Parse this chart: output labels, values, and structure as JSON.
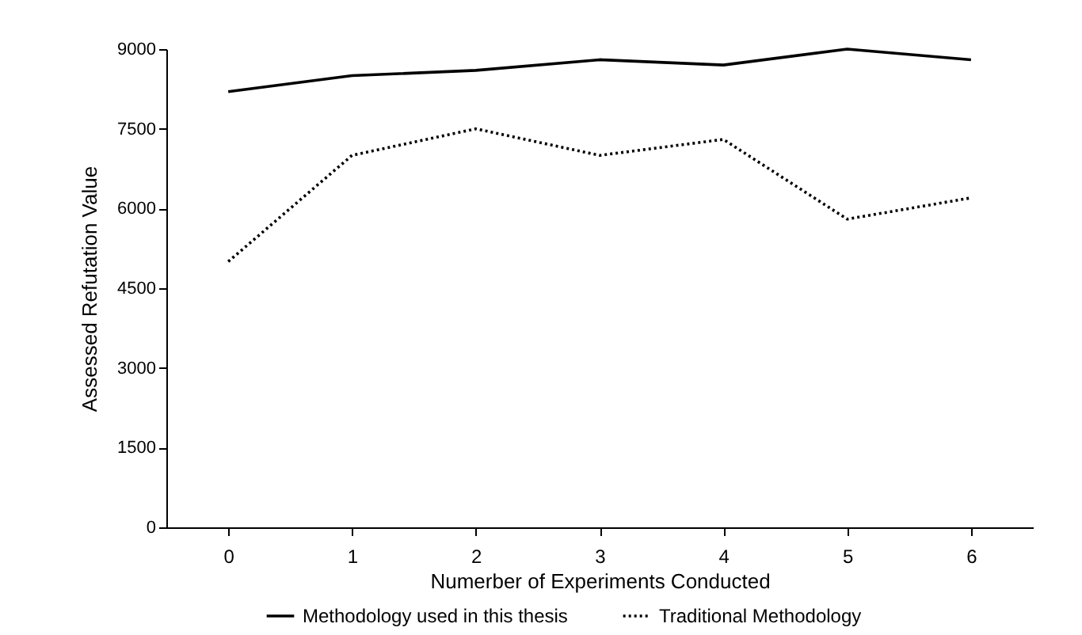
{
  "chart_data": {
    "type": "line",
    "xlabel": "Numerber of Experiments Conducted",
    "ylabel": "Assessed Refutation Value",
    "categories": [
      "0",
      "1",
      "2",
      "3",
      "4",
      "5",
      "6"
    ],
    "series": [
      {
        "name": "Methodology used in this thesis",
        "color": "#000000",
        "line_style": "solid",
        "values": [
          8200,
          8500,
          8600,
          8800,
          8700,
          9000,
          8800
        ]
      },
      {
        "name": "Traditional Methodology",
        "color": "#000000",
        "line_style": "dotted",
        "values": [
          5000,
          7000,
          7500,
          7000,
          7300,
          5800,
          6200
        ]
      }
    ],
    "ylim": [
      0,
      9000
    ],
    "yticks": [
      0,
      1500,
      3000,
      4500,
      6000,
      7500,
      9000
    ],
    "grid": false,
    "legend": "bottom"
  }
}
